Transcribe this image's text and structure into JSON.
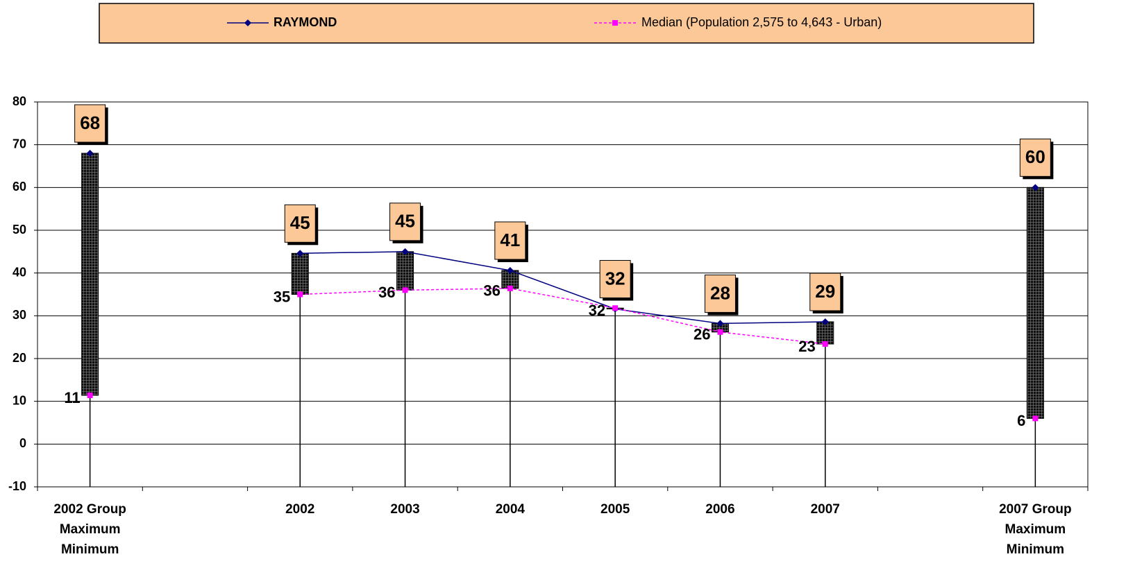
{
  "chart_data": {
    "type": "line",
    "categories": [
      "2002 Group\nMaximum\nMinimum",
      null,
      "2002",
      "2003",
      "2004",
      "2005",
      "2006",
      "2007",
      null,
      "2007 Group\nMaximum\nMinimum"
    ],
    "series": [
      {
        "name": "RAYMOND",
        "color": "#000080",
        "values": [
          68,
          null,
          44.6,
          45,
          40.6,
          31.6,
          28.2,
          28.6,
          null,
          60
        ],
        "value_labels": [
          "68",
          null,
          "45",
          "45",
          "41",
          "32",
          "28",
          "29",
          null,
          "60"
        ]
      },
      {
        "name": "Median (Population 2,575 to 4,643 - Urban)",
        "color": "#ff00ff",
        "values": [
          11.4,
          null,
          35,
          36,
          36.4,
          31.8,
          26.2,
          23.4,
          null,
          6
        ],
        "value_labels": [
          "11",
          null,
          "35",
          "36",
          "36",
          "32",
          "26",
          "23",
          null,
          "6"
        ]
      }
    ],
    "ylim": [
      -10,
      80
    ],
    "yticks": [
      -10,
      0,
      10,
      20,
      30,
      40,
      50,
      60,
      70,
      80
    ],
    "grid": true,
    "legend": "top"
  }
}
